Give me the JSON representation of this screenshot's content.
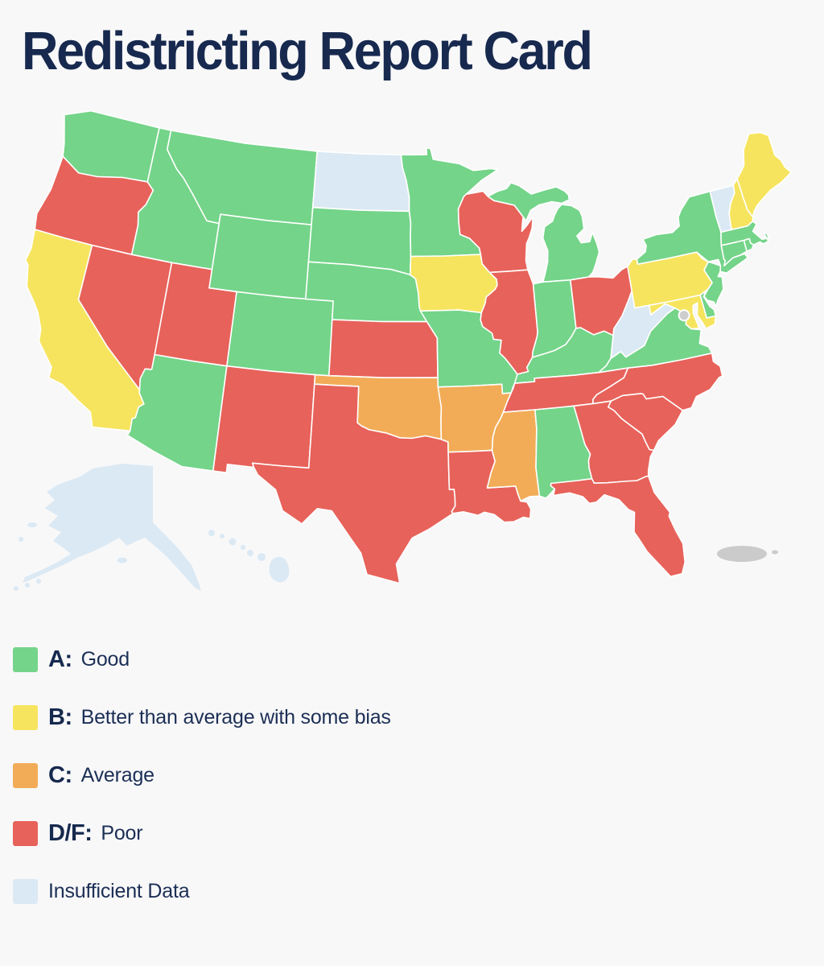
{
  "title": "Redistricting Report Card",
  "colors": {
    "background": "#F8F8F9",
    "state_border": "#FFFFFF",
    "title_text": "#17294E",
    "legend_text": "#1C2F55"
  },
  "legend": {
    "items": [
      {
        "key": "A",
        "grade": "A:",
        "label": "Good",
        "color": "#74D489"
      },
      {
        "key": "B",
        "grade": "B:",
        "label": "Better than average with some bias",
        "color": "#F6E45E"
      },
      {
        "key": "C",
        "grade": "C:",
        "label": "Average",
        "color": "#F2AC57"
      },
      {
        "key": "DF",
        "grade": "D/F:",
        "label": "Poor",
        "color": "#E7625A"
      },
      {
        "key": "ID",
        "grade": "",
        "label": "Insufficient Data",
        "color": "#DBE9F4"
      }
    ]
  },
  "map": {
    "states": [
      {
        "id": "WA",
        "name": "Washington",
        "grade": "A"
      },
      {
        "id": "OR",
        "name": "Oregon",
        "grade": "DF"
      },
      {
        "id": "CA",
        "name": "California",
        "grade": "B"
      },
      {
        "id": "ID",
        "name": "Idaho",
        "grade": "A"
      },
      {
        "id": "NV",
        "name": "Nevada",
        "grade": "DF"
      },
      {
        "id": "UT",
        "name": "Utah",
        "grade": "DF"
      },
      {
        "id": "AZ",
        "name": "Arizona",
        "grade": "A"
      },
      {
        "id": "MT",
        "name": "Montana",
        "grade": "A"
      },
      {
        "id": "WY",
        "name": "Wyoming",
        "grade": "A"
      },
      {
        "id": "CO",
        "name": "Colorado",
        "grade": "A"
      },
      {
        "id": "NM",
        "name": "New Mexico",
        "grade": "DF"
      },
      {
        "id": "ND",
        "name": "North Dakota",
        "grade": "ID"
      },
      {
        "id": "SD",
        "name": "South Dakota",
        "grade": "A"
      },
      {
        "id": "NE",
        "name": "Nebraska",
        "grade": "A"
      },
      {
        "id": "KS",
        "name": "Kansas",
        "grade": "DF"
      },
      {
        "id": "OK",
        "name": "Oklahoma",
        "grade": "C"
      },
      {
        "id": "TX",
        "name": "Texas",
        "grade": "DF"
      },
      {
        "id": "MN",
        "name": "Minnesota",
        "grade": "A"
      },
      {
        "id": "IA",
        "name": "Iowa",
        "grade": "B"
      },
      {
        "id": "MO",
        "name": "Missouri",
        "grade": "A"
      },
      {
        "id": "AR",
        "name": "Arkansas",
        "grade": "C"
      },
      {
        "id": "LA",
        "name": "Louisiana",
        "grade": "DF"
      },
      {
        "id": "WI",
        "name": "Wisconsin",
        "grade": "DF"
      },
      {
        "id": "IL",
        "name": "Illinois",
        "grade": "DF"
      },
      {
        "id": "MI",
        "name": "Michigan",
        "grade": "A"
      },
      {
        "id": "IN",
        "name": "Indiana",
        "grade": "A"
      },
      {
        "id": "OH",
        "name": "Ohio",
        "grade": "DF"
      },
      {
        "id": "KY",
        "name": "Kentucky",
        "grade": "A"
      },
      {
        "id": "TN",
        "name": "Tennessee",
        "grade": "DF"
      },
      {
        "id": "MS",
        "name": "Mississippi",
        "grade": "C"
      },
      {
        "id": "AL",
        "name": "Alabama",
        "grade": "A"
      },
      {
        "id": "GA",
        "name": "Georgia",
        "grade": "DF"
      },
      {
        "id": "FL",
        "name": "Florida",
        "grade": "DF"
      },
      {
        "id": "SC",
        "name": "South Carolina",
        "grade": "DF"
      },
      {
        "id": "NC",
        "name": "North Carolina",
        "grade": "DF"
      },
      {
        "id": "VA",
        "name": "Virginia",
        "grade": "A"
      },
      {
        "id": "WV",
        "name": "West Virginia",
        "grade": "ID"
      },
      {
        "id": "MD",
        "name": "Maryland",
        "grade": "B"
      },
      {
        "id": "DE",
        "name": "Delaware",
        "grade": "A"
      },
      {
        "id": "PA",
        "name": "Pennsylvania",
        "grade": "B"
      },
      {
        "id": "NJ",
        "name": "New Jersey",
        "grade": "A"
      },
      {
        "id": "NY",
        "name": "New York",
        "grade": "A"
      },
      {
        "id": "CT",
        "name": "Connecticut",
        "grade": "A"
      },
      {
        "id": "RI",
        "name": "Rhode Island",
        "grade": "A"
      },
      {
        "id": "MA",
        "name": "Massachusetts",
        "grade": "A"
      },
      {
        "id": "VT",
        "name": "Vermont",
        "grade": "ID"
      },
      {
        "id": "NH",
        "name": "New Hampshire",
        "grade": "B"
      },
      {
        "id": "ME",
        "name": "Maine",
        "grade": "B"
      },
      {
        "id": "AK",
        "name": "Alaska",
        "grade": "ID"
      },
      {
        "id": "HI",
        "name": "Hawaii",
        "grade": "ID"
      }
    ],
    "territories": [
      {
        "id": "DC",
        "name": "Washington DC",
        "color": "#CDCDCD"
      },
      {
        "id": "PR",
        "name": "Puerto Rico",
        "color": "#CBCBCB"
      }
    ]
  }
}
